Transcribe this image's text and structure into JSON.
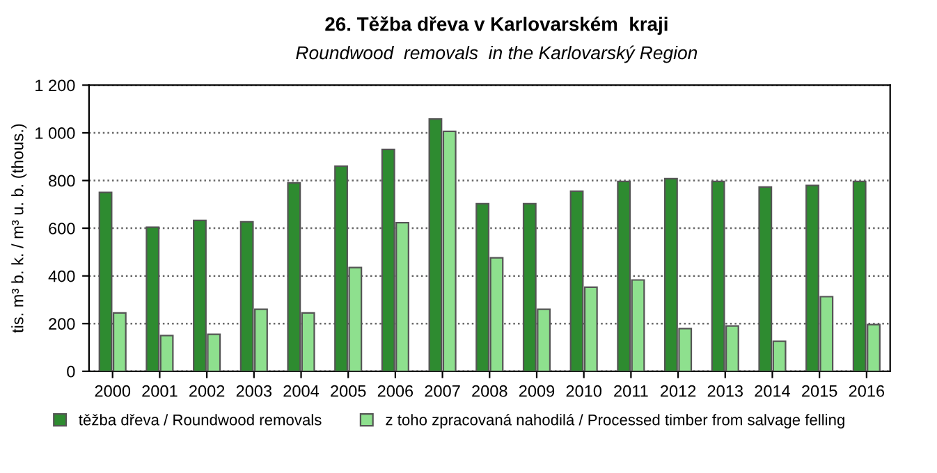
{
  "chart_data": {
    "type": "bar",
    "title": "26. Těžba dřeva v Karlovarském  kraji",
    "subtitle": "Roundwood  removals  in the Karlovarský Region",
    "ylabel": "tis. m³ b. k. / m³ u. b. (thous.)",
    "categories": [
      "2000",
      "2001",
      "2002",
      "2003",
      "2004",
      "2005",
      "2006",
      "2007",
      "2008",
      "2009",
      "2010",
      "2011",
      "2012",
      "2013",
      "2014",
      "2015",
      "2016"
    ],
    "series": [
      {
        "name": "těžba dřeva / Roundwood removals",
        "color": "#2e8b30",
        "values": [
          750,
          604,
          633,
          627,
          790,
          860,
          930,
          1058,
          703,
          703,
          755,
          796,
          808,
          796,
          773,
          779,
          796
        ]
      },
      {
        "name": "z toho zpracovaná nahodilá / Processed timber from salvage felling",
        "color": "#8ee08e",
        "values": [
          245,
          150,
          155,
          260,
          245,
          435,
          623,
          1006,
          476,
          260,
          353,
          383,
          179,
          190,
          126,
          313,
          196
        ]
      }
    ],
    "ylim": [
      0,
      1200
    ],
    "yticks": [
      0,
      200,
      400,
      600,
      800,
      {
        "value": 1000,
        "label": "1 000"
      },
      {
        "value": 1200,
        "label": "1 200"
      }
    ],
    "grid": "y",
    "legend": "bottom"
  }
}
